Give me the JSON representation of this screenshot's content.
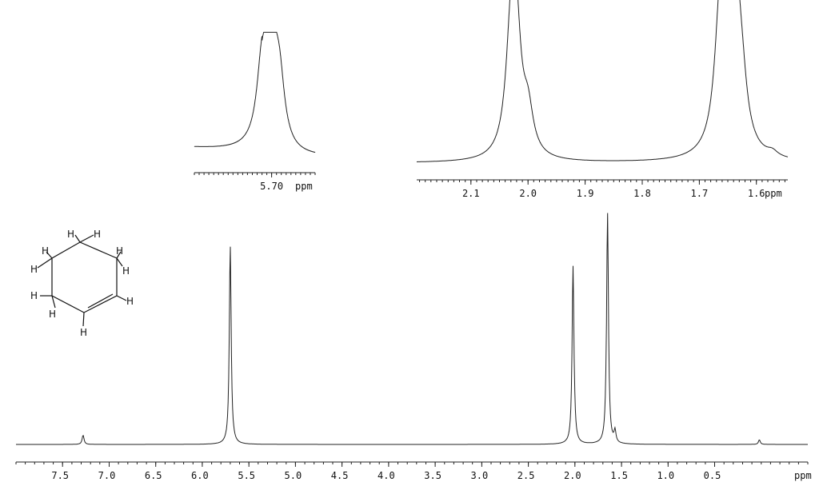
{
  "chart_data": [
    {
      "type": "line",
      "name": "full-spectrum",
      "xlabel": "ppm",
      "xlim": [
        8.0,
        -0.5
      ],
      "x_reversed": true,
      "ticks": [
        7.5,
        7.0,
        6.5,
        6.0,
        5.5,
        5.0,
        4.5,
        4.0,
        3.5,
        3.0,
        2.5,
        2.0,
        1.5,
        1.0,
        0.5
      ],
      "tick_labels": [
        "7.5",
        "7.0",
        "6.5",
        "6.0",
        "5.5",
        "5.0",
        "4.5",
        "4.0",
        "3.5",
        "3.0",
        "2.5",
        "2.0",
        "1.5",
        "1.0",
        "0.5"
      ],
      "peaks": [
        {
          "ppm": 7.28,
          "intensity": 0.04
        },
        {
          "ppm": 5.7,
          "intensity": 0.86
        },
        {
          "ppm": 2.02,
          "intensity": 0.77
        },
        {
          "ppm": 1.65,
          "intensity": 1.0
        },
        {
          "ppm": 1.57,
          "intensity": 0.05
        },
        {
          "ppm": 0.02,
          "intensity": 0.02
        }
      ]
    },
    {
      "type": "line",
      "name": "inset-5.70",
      "xlabel": "ppm",
      "xlim": [
        5.86,
        5.61
      ],
      "ticks": [
        5.7
      ],
      "tick_labels": [
        "5.70"
      ],
      "peaks": [
        {
          "ppm": 5.702,
          "intensity": 1.0
        },
        {
          "ppm": 5.72,
          "intensity": 0.6
        },
        {
          "ppm": 5.684,
          "intensity": 0.55
        }
      ]
    },
    {
      "type": "line",
      "name": "inset-2.1-1.55",
      "xlabel": "ppm",
      "xlim": [
        2.195,
        1.545
      ],
      "ticks": [
        2.1,
        2.0,
        1.9,
        1.8,
        1.7,
        1.6
      ],
      "tick_labels": [
        "2.1",
        "2.0",
        "1.9",
        "1.8",
        "1.7",
        "1.6"
      ],
      "peaks": [
        {
          "ppm": 2.022,
          "intensity": 0.82
        },
        {
          "ppm": 2.03,
          "intensity": 0.55
        },
        {
          "ppm": 2.0,
          "intensity": 0.25
        },
        {
          "ppm": 1.665,
          "intensity": 0.5
        },
        {
          "ppm": 1.655,
          "intensity": 0.6
        },
        {
          "ppm": 1.645,
          "intensity": 1.0
        },
        {
          "ppm": 1.635,
          "intensity": 0.45
        },
        {
          "ppm": 1.625,
          "intensity": 0.25
        },
        {
          "ppm": 1.572,
          "intensity": 0.03
        }
      ]
    }
  ],
  "structure": {
    "name": "cyclohexene",
    "atom_labels": [
      "H",
      "H",
      "H",
      "H",
      "H",
      "H",
      "H",
      "H",
      "H",
      "H"
    ]
  }
}
